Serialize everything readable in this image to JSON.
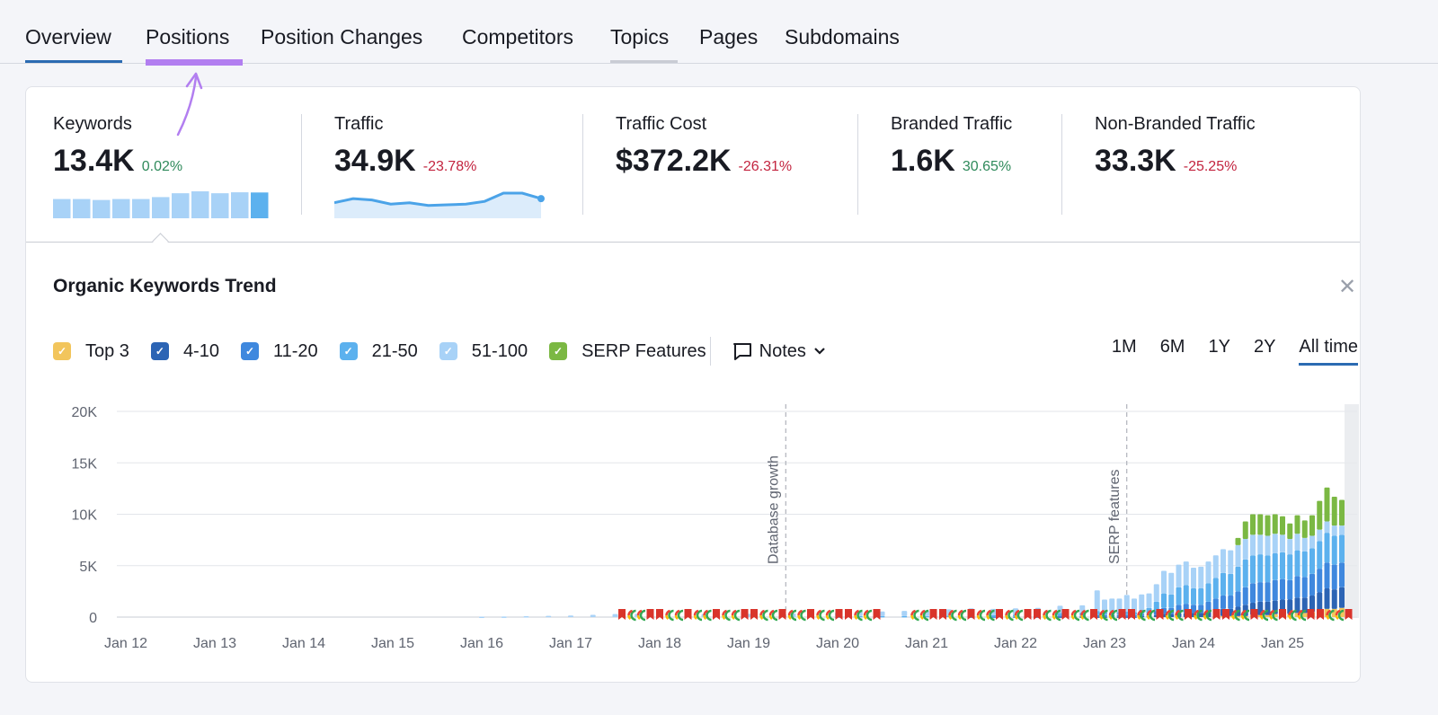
{
  "tabs": [
    {
      "label": "Overview",
      "state": "active"
    },
    {
      "label": "Positions",
      "state": "highlighted"
    },
    {
      "label": "Position Changes"
    },
    {
      "label": "Competitors"
    },
    {
      "label": "Topics",
      "state": "hover"
    },
    {
      "label": "Pages"
    },
    {
      "label": "Subdomains"
    }
  ],
  "metrics": [
    {
      "label": "Keywords",
      "value": "13.4K",
      "change": "0.02%",
      "trend": "positive",
      "sparkline_type": "bar",
      "sparkline": [
        10,
        10,
        9.5,
        10,
        10,
        11,
        13,
        14,
        13,
        13.5,
        13.4
      ]
    },
    {
      "label": "Traffic",
      "value": "34.9K",
      "change": "-23.78%",
      "trend": "negative",
      "sparkline_type": "area",
      "sparkline": [
        40,
        43,
        42,
        39,
        40,
        38,
        38.5,
        39,
        41,
        47,
        47,
        43
      ]
    },
    {
      "label": "Traffic Cost",
      "value": "$372.2K",
      "change": "-26.31%",
      "trend": "negative"
    },
    {
      "label": "Branded Traffic",
      "value": "1.6K",
      "change": "30.65%",
      "trend": "positive"
    },
    {
      "label": "Non-Branded Traffic",
      "value": "33.3K",
      "change": "-25.25%",
      "trend": "negative"
    }
  ],
  "colors": {
    "accent": "#2b6bb2",
    "highlight": "#b27ef0",
    "positive": "#2f8a5b",
    "negative": "#c3243f"
  },
  "chart_panel": {
    "title": "Organic Keywords Trend",
    "close_icon": "close-icon",
    "notes_label": "Notes",
    "ranges": [
      "1M",
      "6M",
      "1Y",
      "2Y",
      "All time"
    ],
    "active_range": "All time"
  },
  "chart_data": {
    "type": "bar",
    "stacked": true,
    "legend": [
      {
        "name": "Top 3",
        "color": "#f2c55c"
      },
      {
        "name": "4-10",
        "color": "#2c64b4"
      },
      {
        "name": "11-20",
        "color": "#3f88de"
      },
      {
        "name": "21-50",
        "color": "#5cb1ee"
      },
      {
        "name": "51-100",
        "color": "#a8d2f7"
      },
      {
        "name": "SERP Features",
        "color": "#7bb843"
      }
    ],
    "ylim": [
      0,
      20000
    ],
    "y_ticks": [
      "0",
      "5K",
      "10K",
      "15K",
      "20K"
    ],
    "x_ticks": [
      "Jan 12",
      "Jan 13",
      "Jan 14",
      "Jan 15",
      "Jan 16",
      "Jan 17",
      "Jan 18",
      "Jan 19",
      "Jan 20",
      "Jan 21",
      "Jan 22",
      "Jan 23",
      "Jan 24",
      "Jan 25"
    ],
    "grid": true,
    "annotations": [
      {
        "date": "2019-06",
        "label": "Database growth"
      },
      {
        "date": "2023-04",
        "label": "SERP features"
      }
    ],
    "points": [
      [
        "2016-01",
        0,
        0,
        0,
        0,
        40,
        0
      ],
      [
        "2016-04",
        0,
        0,
        0,
        0,
        60,
        0
      ],
      [
        "2016-07",
        0,
        0,
        0,
        0,
        90,
        0
      ],
      [
        "2016-10",
        0,
        0,
        0,
        0,
        120,
        0
      ],
      [
        "2017-01",
        0,
        0,
        0,
        0,
        150,
        0
      ],
      [
        "2017-04",
        0,
        0,
        0,
        0,
        220,
        0
      ],
      [
        "2017-07",
        0,
        0,
        0,
        0,
        300,
        0
      ],
      [
        "2017-10",
        0,
        0,
        0,
        0,
        320,
        0
      ],
      [
        "2018-01",
        0,
        0,
        0,
        0,
        300,
        0
      ],
      [
        "2018-07",
        0,
        0,
        0,
        0,
        300,
        0
      ],
      [
        "2019-01",
        0,
        0,
        0,
        0,
        320,
        0
      ],
      [
        "2019-07",
        0,
        0,
        0,
        0,
        350,
        0
      ],
      [
        "2020-01",
        0,
        0,
        0,
        50,
        400,
        0
      ],
      [
        "2020-04",
        0,
        0,
        0,
        100,
        450,
        0
      ],
      [
        "2020-07",
        0,
        0,
        0,
        100,
        450,
        0
      ],
      [
        "2020-10",
        0,
        0,
        0,
        100,
        500,
        0
      ],
      [
        "2021-01",
        0,
        0,
        0,
        100,
        550,
        0
      ],
      [
        "2021-04",
        0,
        0,
        0,
        150,
        600,
        0
      ],
      [
        "2021-07",
        0,
        0,
        50,
        150,
        650,
        0
      ],
      [
        "2021-10",
        0,
        0,
        50,
        150,
        600,
        0
      ],
      [
        "2022-01",
        0,
        0,
        50,
        200,
        600,
        0
      ],
      [
        "2022-04",
        0,
        0,
        50,
        200,
        650,
        0
      ],
      [
        "2022-07",
        0,
        50,
        100,
        250,
        700,
        0
      ],
      [
        "2022-10",
        0,
        50,
        100,
        300,
        700,
        0
      ],
      [
        "2022-12",
        0,
        50,
        150,
        400,
        2000,
        0
      ],
      [
        "2023-01",
        0,
        50,
        150,
        300,
        1200,
        0
      ],
      [
        "2023-02",
        0,
        50,
        150,
        300,
        1300,
        0
      ],
      [
        "2023-03",
        0,
        50,
        150,
        300,
        1300,
        0
      ],
      [
        "2023-04",
        0,
        50,
        150,
        350,
        1600,
        0
      ],
      [
        "2023-05",
        0,
        50,
        150,
        300,
        1300,
        0
      ],
      [
        "2023-06",
        0,
        100,
        200,
        400,
        1500,
        0
      ],
      [
        "2023-07",
        0,
        100,
        200,
        600,
        1400,
        0
      ],
      [
        "2023-08",
        0,
        200,
        400,
        900,
        1700,
        0
      ],
      [
        "2023-09",
        0,
        300,
        600,
        1400,
        2200,
        0
      ],
      [
        "2023-10",
        0,
        300,
        600,
        1300,
        2100,
        0
      ],
      [
        "2023-11",
        0,
        400,
        800,
        1700,
        2200,
        0
      ],
      [
        "2023-12",
        0,
        400,
        900,
        1800,
        2300,
        0
      ],
      [
        "2024-01",
        0,
        400,
        800,
        1600,
        2000,
        0
      ],
      [
        "2024-02",
        0,
        400,
        800,
        1600,
        2100,
        0
      ],
      [
        "2024-03",
        0,
        500,
        1000,
        1800,
        2100,
        0
      ],
      [
        "2024-04",
        100,
        600,
        1100,
        2000,
        2200,
        0
      ],
      [
        "2024-05",
        100,
        700,
        1300,
        2200,
        2300,
        0
      ],
      [
        "2024-06",
        100,
        700,
        1300,
        2100,
        2300,
        0
      ],
      [
        "2024-07",
        100,
        900,
        1500,
        2400,
        2100,
        700
      ],
      [
        "2024-08",
        100,
        1100,
        1700,
        2700,
        2000,
        1700
      ],
      [
        "2024-09",
        200,
        1200,
        1900,
        2700,
        2000,
        2000
      ],
      [
        "2024-10",
        200,
        1300,
        1900,
        2700,
        1900,
        2000
      ],
      [
        "2024-11",
        200,
        1300,
        1900,
        2600,
        1900,
        2000
      ],
      [
        "2024-12",
        300,
        1300,
        2000,
        2600,
        1900,
        1900
      ],
      [
        "2025-01",
        300,
        1400,
        2000,
        2600,
        1700,
        1800
      ],
      [
        "2025-02",
        300,
        1400,
        1900,
        2500,
        1500,
        1500
      ],
      [
        "2025-03",
        400,
        1500,
        2100,
        2500,
        1600,
        1800
      ],
      [
        "2025-04",
        400,
        1500,
        2000,
        2500,
        1300,
        1700
      ],
      [
        "2025-05",
        500,
        1600,
        2100,
        2500,
        1200,
        2000
      ],
      [
        "2025-06",
        600,
        1800,
        2300,
        2700,
        1100,
        2800
      ],
      [
        "2025-07",
        800,
        2000,
        2500,
        2900,
        1100,
        3300
      ],
      [
        "2025-08",
        800,
        1900,
        2400,
        2800,
        1000,
        2800
      ],
      [
        "2025-09",
        900,
        2000,
        2400,
        2700,
        900,
        2500
      ]
    ]
  }
}
